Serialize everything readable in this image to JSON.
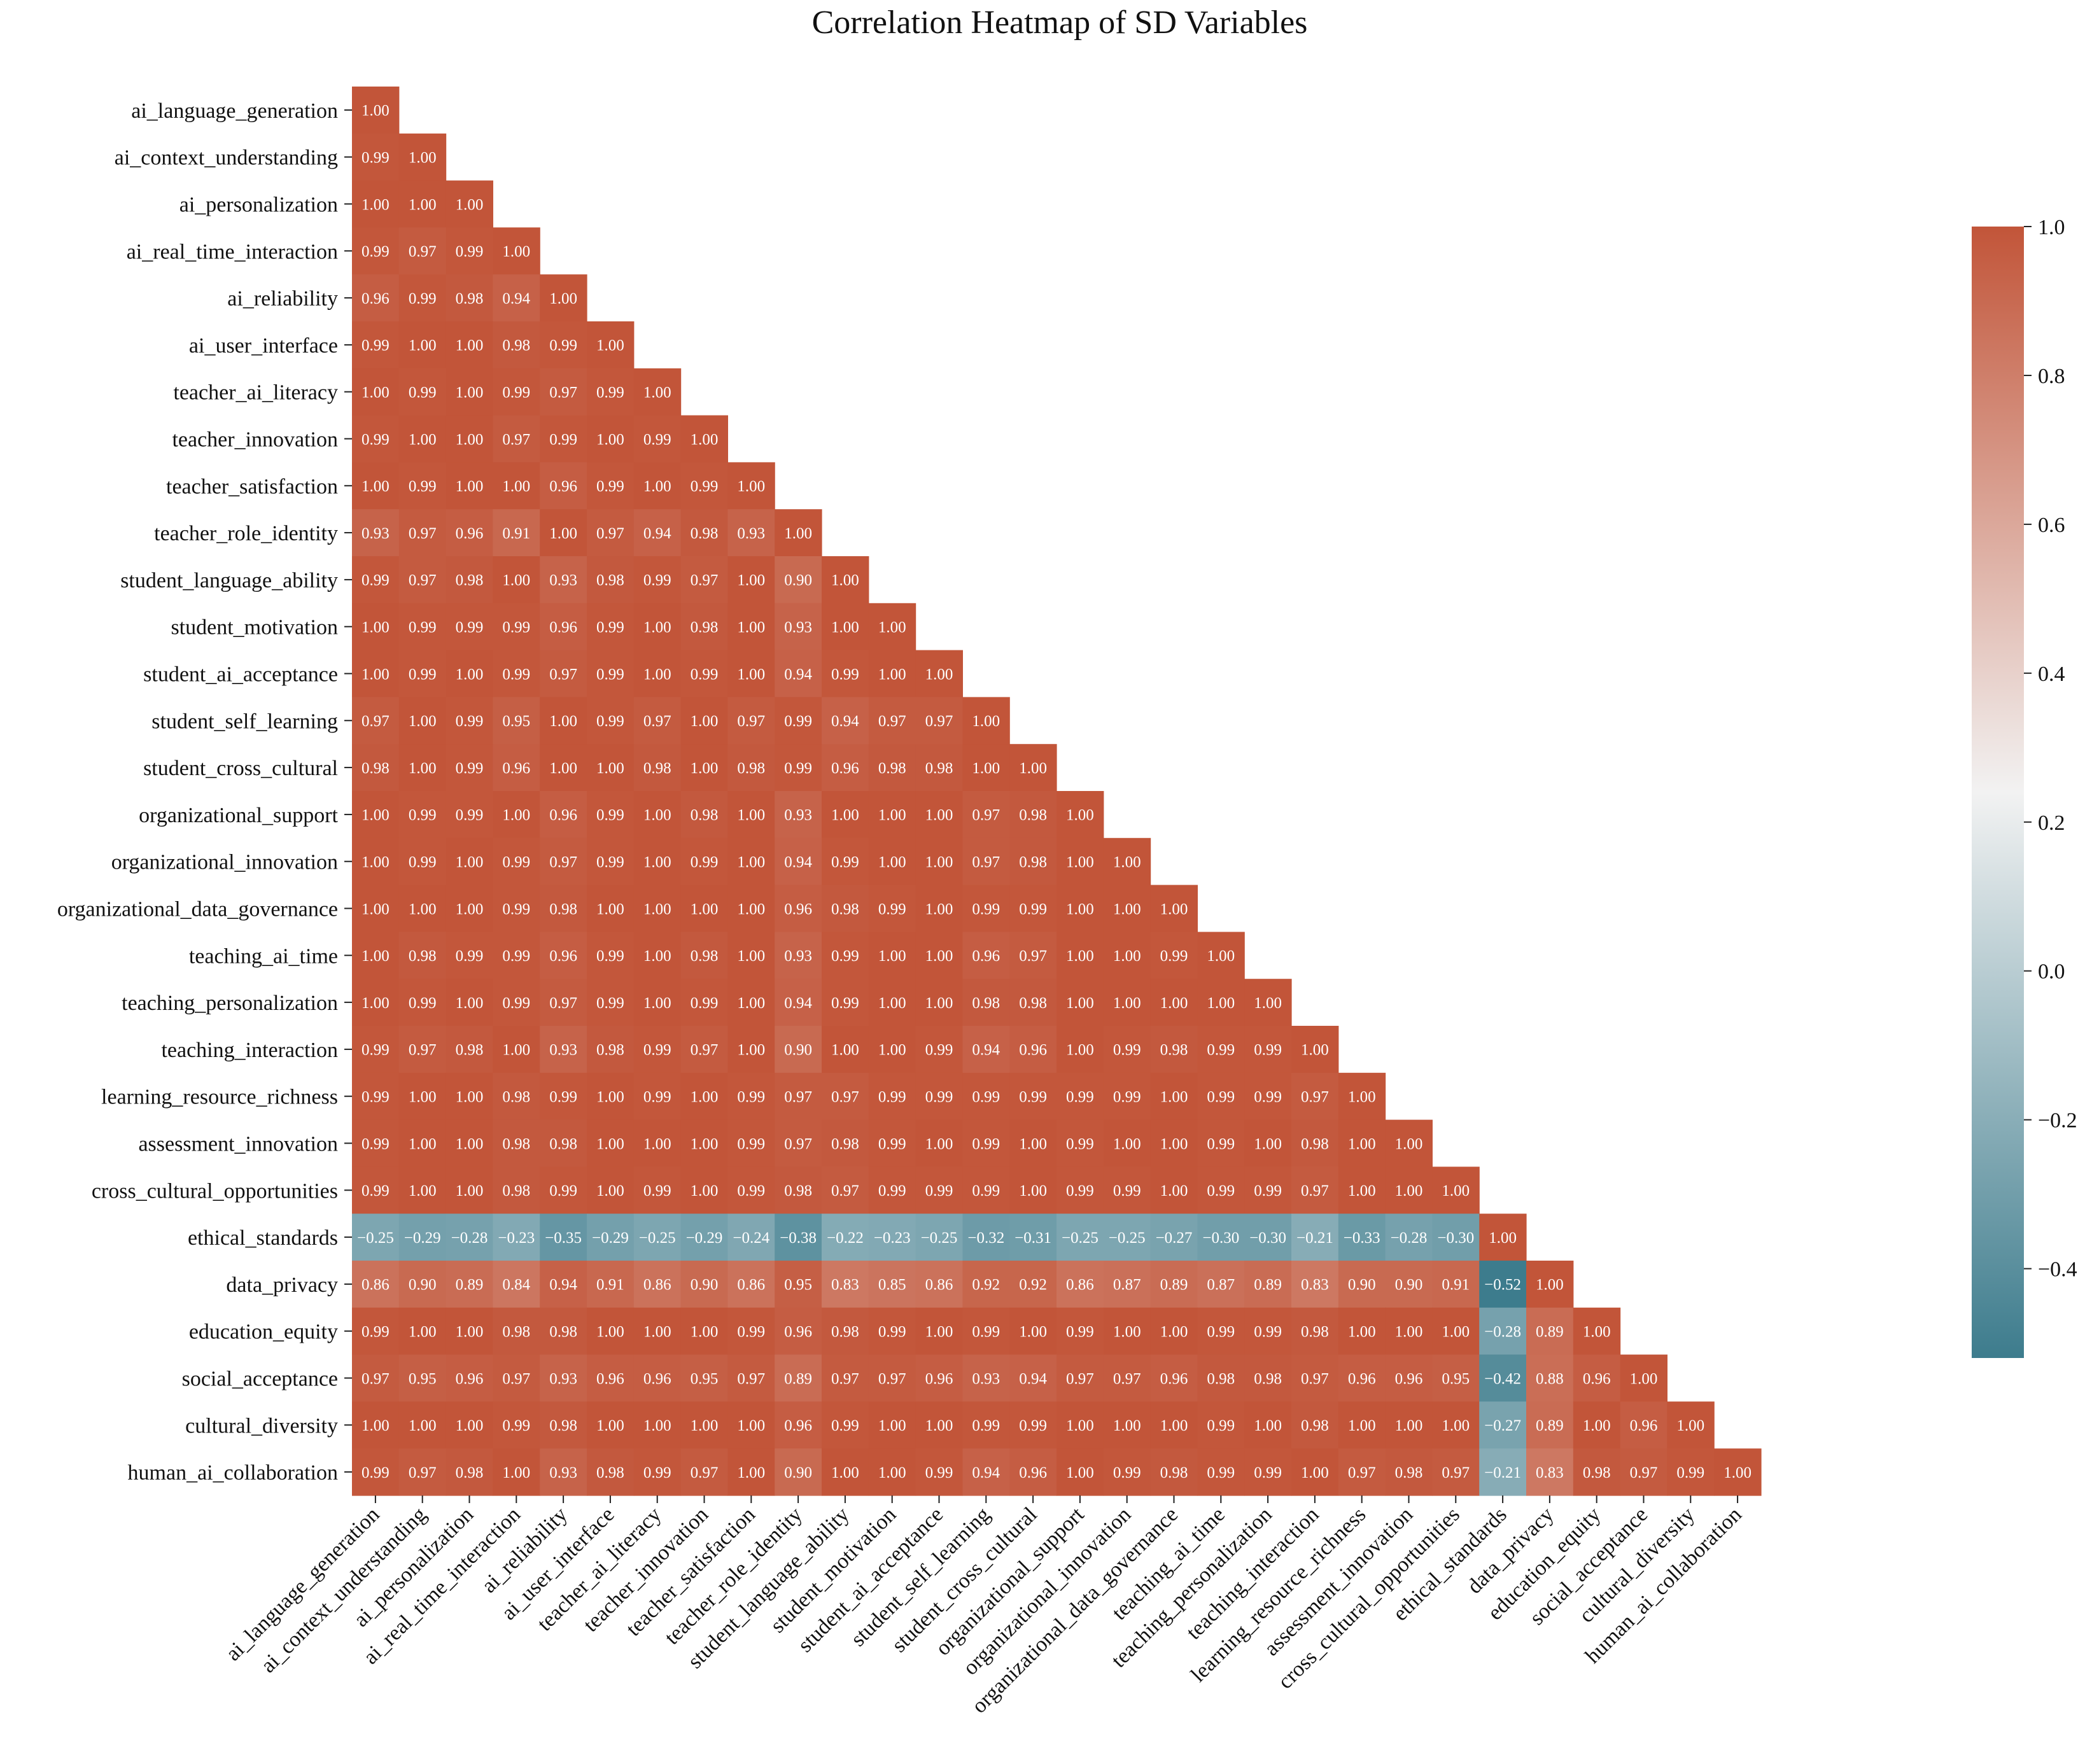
{
  "chart_data": {
    "type": "heatmap",
    "title": "Correlation Heatmap of SD Variables",
    "mask": "upper-triangle",
    "labels": [
      "ai_language_generation",
      "ai_context_understanding",
      "ai_personalization",
      "ai_real_time_interaction",
      "ai_reliability",
      "ai_user_interface",
      "teacher_ai_literacy",
      "teacher_innovation",
      "teacher_satisfaction",
      "teacher_role_identity",
      "student_language_ability",
      "student_motivation",
      "student_ai_acceptance",
      "student_self_learning",
      "student_cross_cultural",
      "organizational_support",
      "organizational_innovation",
      "organizational_data_governance",
      "teaching_ai_time",
      "teaching_personalization",
      "teaching_interaction",
      "learning_resource_richness",
      "assessment_innovation",
      "cross_cultural_opportunities",
      "ethical_standards",
      "data_privacy",
      "education_equity",
      "social_acceptance",
      "cultural_diversity",
      "human_ai_collaboration"
    ],
    "matrix": [
      [
        1.0
      ],
      [
        0.99,
        1.0
      ],
      [
        1.0,
        1.0,
        1.0
      ],
      [
        0.99,
        0.97,
        0.99,
        1.0
      ],
      [
        0.96,
        0.99,
        0.98,
        0.94,
        1.0
      ],
      [
        0.99,
        1.0,
        1.0,
        0.98,
        0.99,
        1.0
      ],
      [
        1.0,
        0.99,
        1.0,
        0.99,
        0.97,
        0.99,
        1.0
      ],
      [
        0.99,
        1.0,
        1.0,
        0.97,
        0.99,
        1.0,
        0.99,
        1.0
      ],
      [
        1.0,
        0.99,
        1.0,
        1.0,
        0.96,
        0.99,
        1.0,
        0.99,
        1.0
      ],
      [
        0.93,
        0.97,
        0.96,
        0.91,
        1.0,
        0.97,
        0.94,
        0.98,
        0.93,
        1.0
      ],
      [
        0.99,
        0.97,
        0.98,
        1.0,
        0.93,
        0.98,
        0.99,
        0.97,
        1.0,
        0.9,
        1.0
      ],
      [
        1.0,
        0.99,
        0.99,
        0.99,
        0.96,
        0.99,
        1.0,
        0.98,
        1.0,
        0.93,
        1.0,
        1.0
      ],
      [
        1.0,
        0.99,
        1.0,
        0.99,
        0.97,
        0.99,
        1.0,
        0.99,
        1.0,
        0.94,
        0.99,
        1.0,
        1.0
      ],
      [
        0.97,
        1.0,
        0.99,
        0.95,
        1.0,
        0.99,
        0.97,
        1.0,
        0.97,
        0.99,
        0.94,
        0.97,
        0.97,
        1.0
      ],
      [
        0.98,
        1.0,
        0.99,
        0.96,
        1.0,
        1.0,
        0.98,
        1.0,
        0.98,
        0.99,
        0.96,
        0.98,
        0.98,
        1.0,
        1.0
      ],
      [
        1.0,
        0.99,
        0.99,
        1.0,
        0.96,
        0.99,
        1.0,
        0.98,
        1.0,
        0.93,
        1.0,
        1.0,
        1.0,
        0.97,
        0.98,
        1.0
      ],
      [
        1.0,
        0.99,
        1.0,
        0.99,
        0.97,
        0.99,
        1.0,
        0.99,
        1.0,
        0.94,
        0.99,
        1.0,
        1.0,
        0.97,
        0.98,
        1.0,
        1.0
      ],
      [
        1.0,
        1.0,
        1.0,
        0.99,
        0.98,
        1.0,
        1.0,
        1.0,
        1.0,
        0.96,
        0.98,
        0.99,
        1.0,
        0.99,
        0.99,
        1.0,
        1.0,
        1.0
      ],
      [
        1.0,
        0.98,
        0.99,
        0.99,
        0.96,
        0.99,
        1.0,
        0.98,
        1.0,
        0.93,
        0.99,
        1.0,
        1.0,
        0.96,
        0.97,
        1.0,
        1.0,
        0.99,
        1.0
      ],
      [
        1.0,
        0.99,
        1.0,
        0.99,
        0.97,
        0.99,
        1.0,
        0.99,
        1.0,
        0.94,
        0.99,
        1.0,
        1.0,
        0.98,
        0.98,
        1.0,
        1.0,
        1.0,
        1.0,
        1.0
      ],
      [
        0.99,
        0.97,
        0.98,
        1.0,
        0.93,
        0.98,
        0.99,
        0.97,
        1.0,
        0.9,
        1.0,
        1.0,
        0.99,
        0.94,
        0.96,
        1.0,
        0.99,
        0.98,
        0.99,
        0.99,
        1.0
      ],
      [
        0.99,
        1.0,
        1.0,
        0.98,
        0.99,
        1.0,
        0.99,
        1.0,
        0.99,
        0.97,
        0.97,
        0.99,
        0.99,
        0.99,
        0.99,
        0.99,
        0.99,
        1.0,
        0.99,
        0.99,
        0.97,
        1.0
      ],
      [
        0.99,
        1.0,
        1.0,
        0.98,
        0.98,
        1.0,
        1.0,
        1.0,
        0.99,
        0.97,
        0.98,
        0.99,
        1.0,
        0.99,
        1.0,
        0.99,
        1.0,
        1.0,
        0.99,
        1.0,
        0.98,
        1.0,
        1.0
      ],
      [
        0.99,
        1.0,
        1.0,
        0.98,
        0.99,
        1.0,
        0.99,
        1.0,
        0.99,
        0.98,
        0.97,
        0.99,
        0.99,
        0.99,
        1.0,
        0.99,
        0.99,
        1.0,
        0.99,
        0.99,
        0.97,
        1.0,
        1.0,
        1.0
      ],
      [
        -0.25,
        -0.29,
        -0.28,
        -0.23,
        -0.35,
        -0.29,
        -0.25,
        -0.29,
        -0.24,
        -0.38,
        -0.22,
        -0.23,
        -0.25,
        -0.32,
        -0.31,
        -0.25,
        -0.25,
        -0.27,
        -0.3,
        -0.3,
        -0.21,
        -0.33,
        -0.28,
        -0.3,
        1.0
      ],
      [
        0.86,
        0.9,
        0.89,
        0.84,
        0.94,
        0.91,
        0.86,
        0.9,
        0.86,
        0.95,
        0.83,
        0.85,
        0.86,
        0.92,
        0.92,
        0.86,
        0.87,
        0.89,
        0.87,
        0.89,
        0.83,
        0.9,
        0.9,
        0.91,
        -0.52,
        1.0
      ],
      [
        0.99,
        1.0,
        1.0,
        0.98,
        0.98,
        1.0,
        1.0,
        1.0,
        0.99,
        0.96,
        0.98,
        0.99,
        1.0,
        0.99,
        1.0,
        0.99,
        1.0,
        1.0,
        0.99,
        0.99,
        0.98,
        1.0,
        1.0,
        1.0,
        -0.28,
        0.89,
        1.0
      ],
      [
        0.97,
        0.95,
        0.96,
        0.97,
        0.93,
        0.96,
        0.96,
        0.95,
        0.97,
        0.89,
        0.97,
        0.97,
        0.96,
        0.93,
        0.94,
        0.97,
        0.97,
        0.96,
        0.98,
        0.98,
        0.97,
        0.96,
        0.96,
        0.95,
        -0.42,
        0.88,
        0.96,
        1.0
      ],
      [
        1.0,
        1.0,
        1.0,
        0.99,
        0.98,
        1.0,
        1.0,
        1.0,
        1.0,
        0.96,
        0.99,
        1.0,
        1.0,
        0.99,
        0.99,
        1.0,
        1.0,
        1.0,
        0.99,
        1.0,
        0.98,
        1.0,
        1.0,
        1.0,
        -0.27,
        0.89,
        1.0,
        0.96,
        1.0
      ],
      [
        0.99,
        0.97,
        0.98,
        1.0,
        0.93,
        0.98,
        0.99,
        0.97,
        1.0,
        0.9,
        1.0,
        1.0,
        0.99,
        0.94,
        0.96,
        1.0,
        0.99,
        0.98,
        0.99,
        0.99,
        1.0,
        0.97,
        0.98,
        0.97,
        -0.21,
        0.83,
        0.98,
        0.97,
        0.99,
        1.0
      ]
    ],
    "colorbar": {
      "min": -0.52,
      "max": 1.0,
      "ticks": [
        1.0,
        0.8,
        0.6,
        0.4,
        0.2,
        0.0,
        -0.2,
        -0.4
      ],
      "tick_labels": [
        "1.0",
        "0.8",
        "0.6",
        "0.4",
        "0.2",
        "0.0",
        "−0.2",
        "−0.4"
      ],
      "colormap": "diverging teal-white-orange",
      "color_low": "#3d7c8d",
      "color_mid": "#f2f2f2",
      "color_high": "#c25539"
    }
  }
}
